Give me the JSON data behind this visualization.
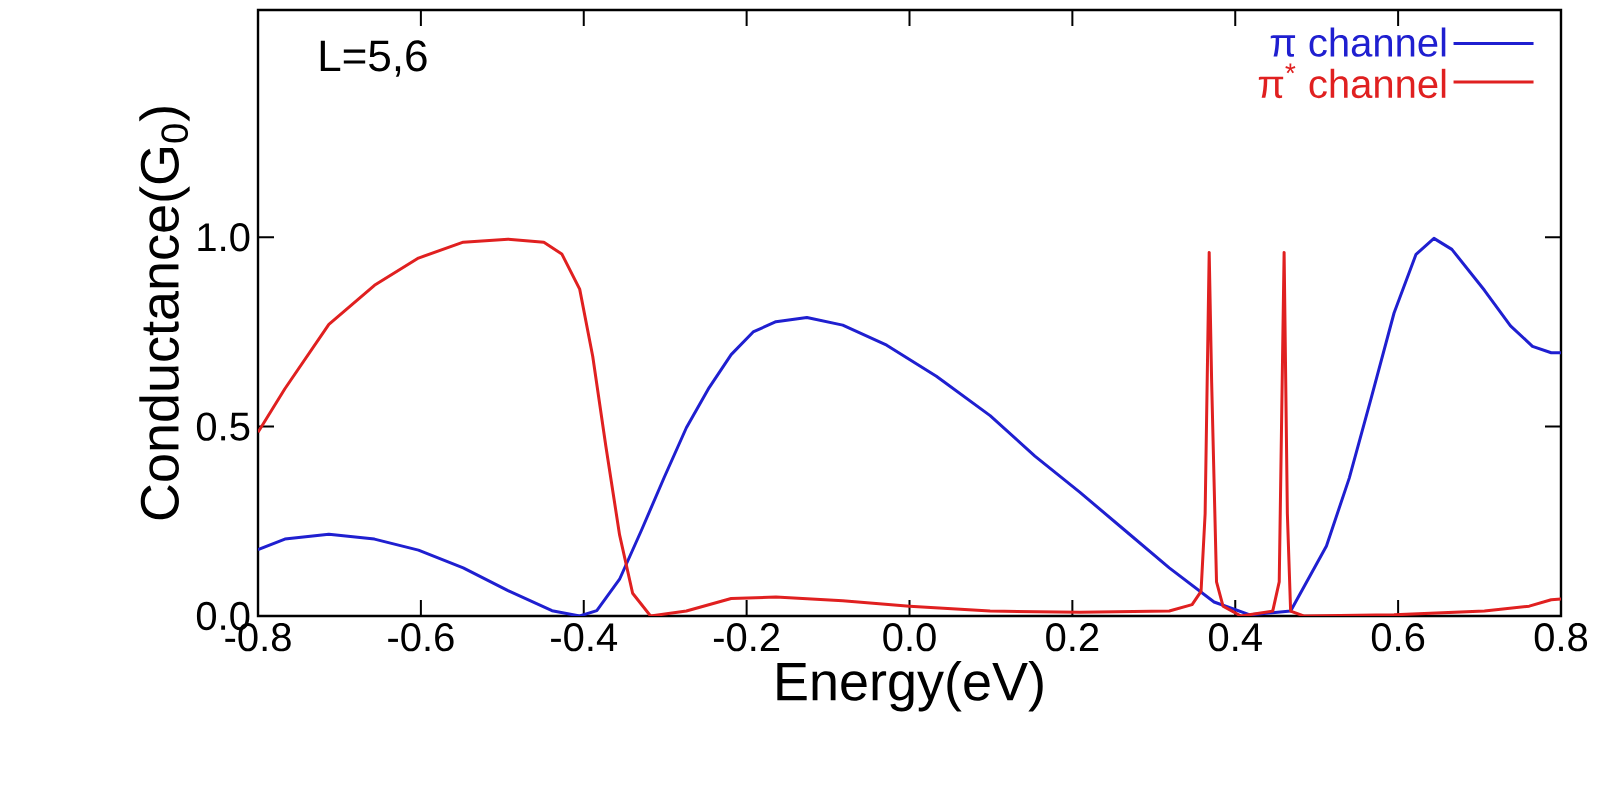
{
  "chart_data": {
    "type": "line",
    "xlabel": "Energy(eV)",
    "ylabel": "Conductance(G$_{0}$)",
    "xlim": [
      -0.8,
      0.8
    ],
    "ylim": [
      0,
      1.6
    ],
    "xticks": [
      {
        "value": -0.8,
        "label": "-0.8"
      },
      {
        "value": -0.6,
        "label": "-0.6"
      },
      {
        "value": -0.4,
        "label": "-0.4"
      },
      {
        "value": -0.2,
        "label": "-0.2"
      },
      {
        "value": 0,
        "label": "0.0"
      },
      {
        "value": 0.2,
        "label": "0.2"
      },
      {
        "value": 0.4,
        "label": "0.4"
      },
      {
        "value": 0.6,
        "label": "0.6"
      },
      {
        "value": 0.8,
        "label": "0.8"
      }
    ],
    "yticks": [
      {
        "value": 0,
        "label": "0.0"
      },
      {
        "value": 0.5,
        "label": "0.5"
      },
      {
        "value": 1,
        "label": "1.0"
      }
    ],
    "legend": "top right",
    "annotations": [
      "L=5,6"
    ],
    "series": [
      {
        "name": "π channel",
        "color": "#1f1fd0",
        "x": [
          -0.8,
          -0.767,
          -0.713,
          -0.657,
          -0.603,
          -0.548,
          -0.493,
          -0.439,
          -0.405,
          -0.384,
          -0.356,
          -0.329,
          -0.301,
          -0.274,
          -0.246,
          -0.219,
          -0.192,
          -0.164,
          -0.126,
          -0.082,
          -0.028,
          0.033,
          0.099,
          0.154,
          0.209,
          0.264,
          0.319,
          0.374,
          0.418,
          0.468,
          0.512,
          0.54,
          0.567,
          0.595,
          0.622,
          0.644,
          0.666,
          0.706,
          0.738,
          0.765,
          0.788,
          0.8
        ],
        "values": [
          0.175,
          0.203,
          0.216,
          0.203,
          0.174,
          0.127,
          0.067,
          0.014,
          0,
          0.014,
          0.097,
          0.227,
          0.367,
          0.497,
          0.603,
          0.69,
          0.75,
          0.777,
          0.788,
          0.768,
          0.715,
          0.633,
          0.529,
          0.422,
          0.327,
          0.227,
          0.127,
          0.037,
          0.003,
          0.013,
          0.185,
          0.364,
          0.576,
          0.8,
          0.955,
          0.997,
          0.968,
          0.86,
          0.766,
          0.712,
          0.695,
          0.695
        ]
      },
      {
        "name": "π$^{*}$ channel",
        "color": "#e02020",
        "x": [
          -0.8,
          -0.767,
          -0.713,
          -0.657,
          -0.603,
          -0.548,
          -0.493,
          -0.449,
          -0.427,
          -0.405,
          -0.389,
          -0.373,
          -0.356,
          -0.34,
          -0.318,
          -0.274,
          -0.219,
          -0.164,
          -0.082,
          0.0,
          0.099,
          0.209,
          0.319,
          0.347,
          0.358,
          0.363,
          0.368,
          0.371,
          0.377,
          0.385,
          0.407,
          0.446,
          0.454,
          0.46,
          0.464,
          0.468,
          0.484,
          0.595,
          0.706,
          0.761,
          0.788,
          0.8
        ],
        "values": [
          0.485,
          0.6,
          0.77,
          0.873,
          0.945,
          0.987,
          0.995,
          0.987,
          0.956,
          0.863,
          0.686,
          0.45,
          0.214,
          0.06,
          0,
          0.013,
          0.046,
          0.05,
          0.04,
          0.026,
          0.013,
          0.01,
          0.013,
          0.03,
          0.065,
          0.27,
          0.96,
          0.62,
          0.09,
          0.026,
          0,
          0.013,
          0.09,
          0.96,
          0.27,
          0.013,
          0,
          0.003,
          0.013,
          0.026,
          0.043,
          0.045
        ]
      }
    ]
  }
}
